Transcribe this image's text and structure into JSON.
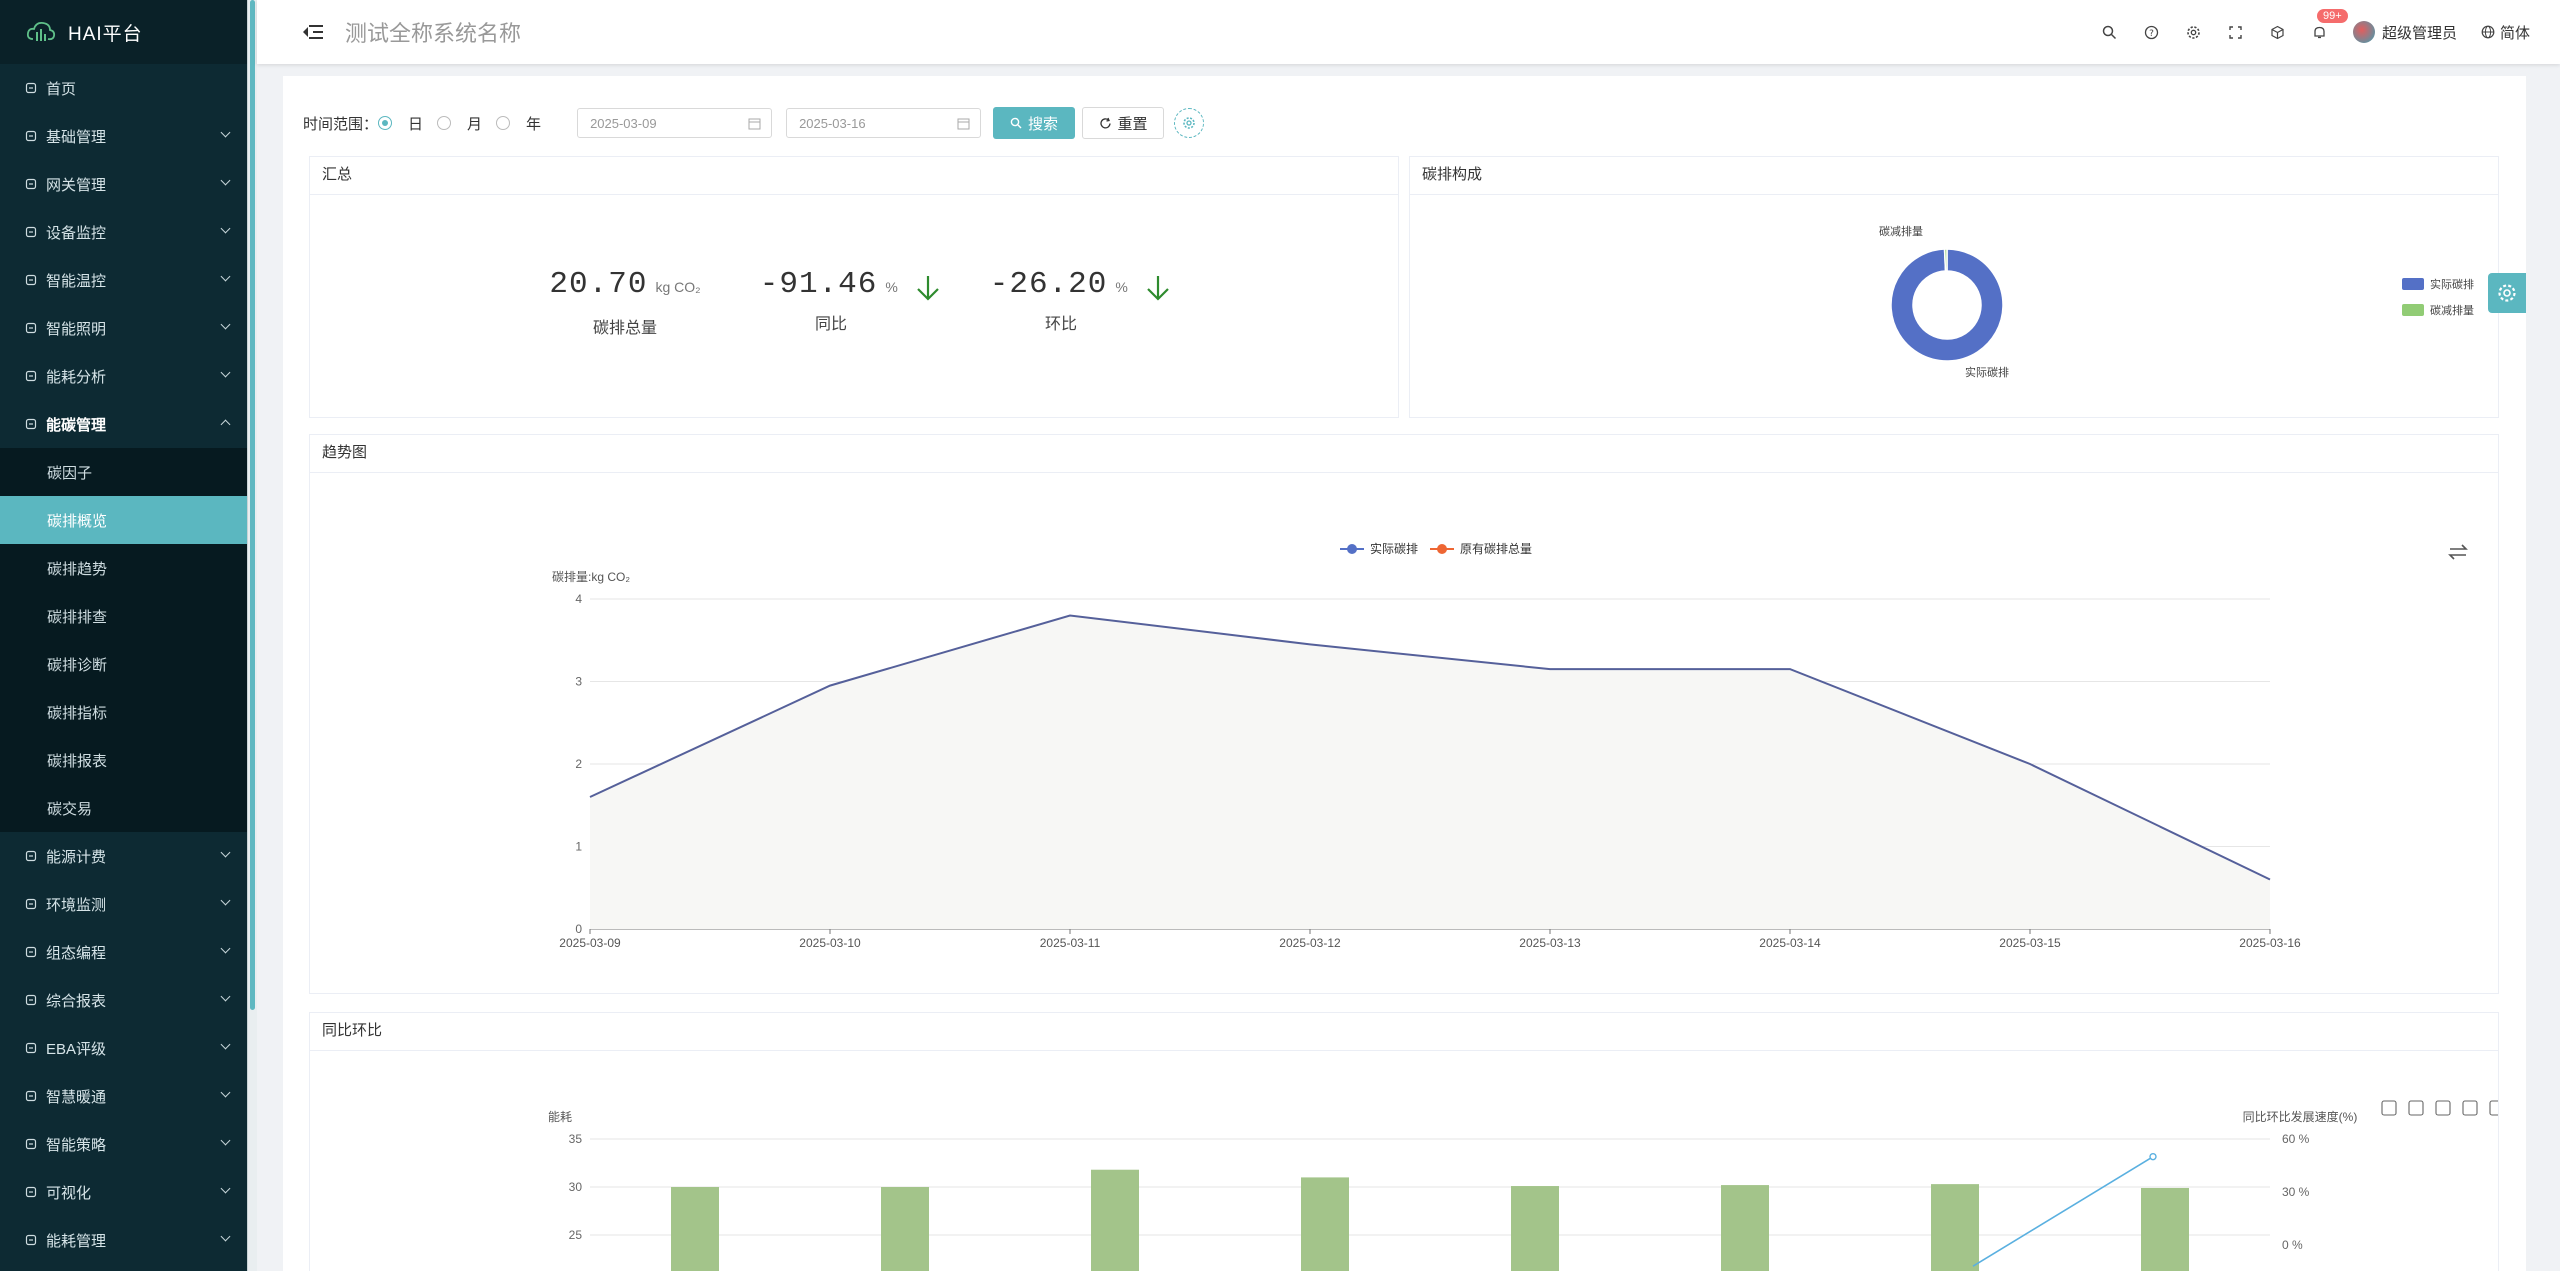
{
  "sidebar": {
    "brand": "HAI平台",
    "menu": [
      {
        "label": "首页",
        "icon": "dashboard-icon"
      },
      {
        "label": "基础管理",
        "icon": "database-icon"
      },
      {
        "label": "网关管理",
        "icon": "gateway-icon"
      },
      {
        "label": "设备监控",
        "icon": "monitor-icon"
      },
      {
        "label": "智能温控",
        "icon": "thermometer-icon"
      },
      {
        "label": "智能照明",
        "icon": "bulb-icon"
      },
      {
        "label": "能耗分析",
        "icon": "bar-chart-icon"
      },
      {
        "label": "能碳管理",
        "icon": "cloud-icon"
      }
    ],
    "submenu": [
      "碳因子",
      "碳排概览",
      "碳排趋势",
      "碳排排查",
      "碳排诊断",
      "碳排指标",
      "碳排报表",
      "碳交易"
    ],
    "menu_after": [
      {
        "label": "能源计费",
        "icon": "wallet-icon"
      },
      {
        "label": "环境监测",
        "icon": "leaf-icon"
      },
      {
        "label": "组态编程",
        "icon": "settings-circle-icon"
      },
      {
        "label": "综合报表",
        "icon": "report-icon"
      },
      {
        "label": "EBA评级",
        "icon": "rating-icon"
      },
      {
        "label": "智慧暖通",
        "icon": "hvac-icon"
      },
      {
        "label": "智能策略",
        "icon": "strategy-icon"
      },
      {
        "label": "可视化",
        "icon": "visual-icon"
      },
      {
        "label": "能耗管理",
        "icon": "energy-icon"
      }
    ]
  },
  "header": {
    "system_title": "测试全称系统名称",
    "notification_count": "99+",
    "user_name": "超级管理员",
    "language": "简体"
  },
  "toolbar": {
    "range_label": "时间范围：",
    "options": [
      "日",
      "月",
      "年"
    ],
    "selected": "日",
    "start_date": "2025-03-09",
    "end_date": "2025-03-16",
    "search_label": "搜索",
    "reset_label": "重置"
  },
  "summary": {
    "title": "汇总",
    "total": {
      "value": "20.70",
      "unit": "kg CO₂",
      "label": "碳排总量"
    },
    "yoy": {
      "value": "-91.46",
      "unit": "%",
      "label": "同比"
    },
    "mom": {
      "value": "-26.20",
      "unit": "%",
      "label": "环比"
    }
  },
  "composition": {
    "title": "碳排构成",
    "label_top": "碳减排量",
    "label_bottom": "实际碳排",
    "legend": [
      "实际碳排",
      "碳减排量"
    ],
    "colors": [
      "#5470c6",
      "#91cc75"
    ]
  },
  "trend": {
    "title": "趋势图",
    "legend": [
      "实际碳排",
      "原有碳排总量"
    ],
    "legend_colors": [
      "#5470c6",
      "#ee6633"
    ]
  },
  "compare": {
    "title": "同比环比",
    "left_axis_name": "能耗",
    "right_axis_name": "同比环比发展速度(%)"
  },
  "chart_data": [
    {
      "type": "area",
      "ylabel": "碳排量:kg CO₂",
      "x": [
        "2025-03-09",
        "2025-03-10",
        "2025-03-11",
        "2025-03-12",
        "2025-03-13",
        "2025-03-14",
        "2025-03-15",
        "2025-03-16"
      ],
      "series": [
        {
          "name": "实际碳排",
          "values": [
            1.6,
            2.95,
            3.8,
            3.45,
            3.15,
            3.15,
            2.0,
            0.6
          ]
        }
      ],
      "ylim": [
        0,
        4
      ],
      "yticks": [
        0,
        1,
        2,
        3,
        4
      ],
      "grid": true,
      "legend_position": "top-center"
    },
    {
      "type": "pie",
      "categories": [
        "实际碳排",
        "碳减排量"
      ],
      "values": [
        99.3,
        0.7
      ],
      "legend_position": "right"
    },
    {
      "type": "bar",
      "ylabel": "能耗",
      "y2label": "同比环比发展速度(%)",
      "series": [
        {
          "values": [
            30,
            30,
            31.8,
            31,
            30.1,
            30.2,
            30.3,
            29.9
          ]
        },
        {
          "type": "line",
          "values": [
            null,
            null,
            null,
            null,
            null,
            null,
            -12,
            50
          ]
        }
      ],
      "ylim_visible": [
        25,
        35
      ],
      "yticks": [
        25,
        30,
        35
      ],
      "y2ticks": [
        "0 %",
        "30 %",
        "60 %"
      ],
      "y2lim_visible": [
        0,
        60
      ]
    }
  ]
}
